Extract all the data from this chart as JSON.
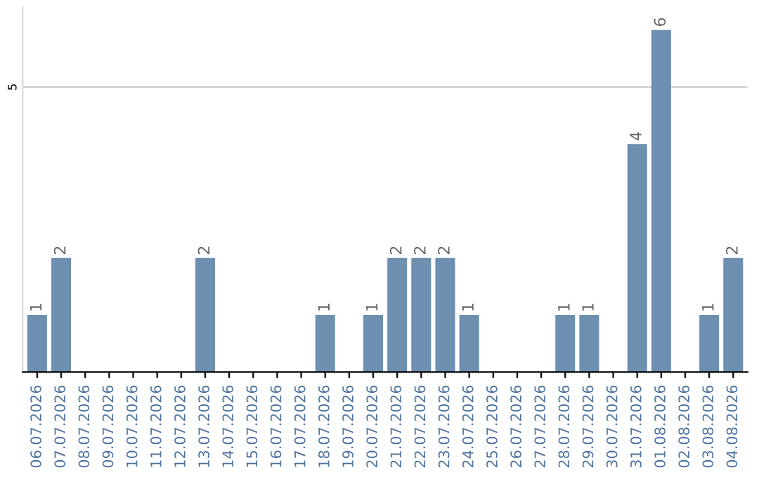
{
  "chart_data": {
    "type": "bar",
    "categories": [
      "06.07.2026",
      "07.07.2026",
      "08.07.2026",
      "09.07.2026",
      "10.07.2026",
      "11.07.2026",
      "12.07.2026",
      "13.07.2026",
      "14.07.2026",
      "15.07.2026",
      "16.07.2026",
      "17.07.2026",
      "18.07.2026",
      "19.07.2026",
      "20.07.2026",
      "21.07.2026",
      "22.07.2026",
      "23.07.2026",
      "24.07.2026",
      "25.07.2026",
      "26.07.2026",
      "27.07.2026",
      "28.07.2026",
      "29.07.2026",
      "30.07.2026",
      "31.07.2026",
      "01.08.2026",
      "02.08.2026",
      "03.08.2026",
      "04.08.2026"
    ],
    "values": [
      1,
      2,
      0,
      0,
      0,
      0,
      0,
      2,
      0,
      0,
      0,
      0,
      1,
      0,
      1,
      2,
      2,
      2,
      1,
      0,
      0,
      0,
      1,
      1,
      0,
      4,
      6,
      0,
      1,
      2
    ],
    "value_labels": [
      "1",
      "2",
      null,
      null,
      null,
      null,
      null,
      "2",
      null,
      null,
      null,
      null,
      "1",
      null,
      "1",
      "2",
      "2",
      "2",
      "1",
      null,
      null,
      null,
      "1",
      "1",
      null,
      "4",
      "6",
      null,
      "1",
      "2"
    ],
    "color": "#6d8fb0",
    "ylim": [
      0,
      6.4
    ],
    "yticks": [
      5
    ],
    "grid": "y"
  }
}
